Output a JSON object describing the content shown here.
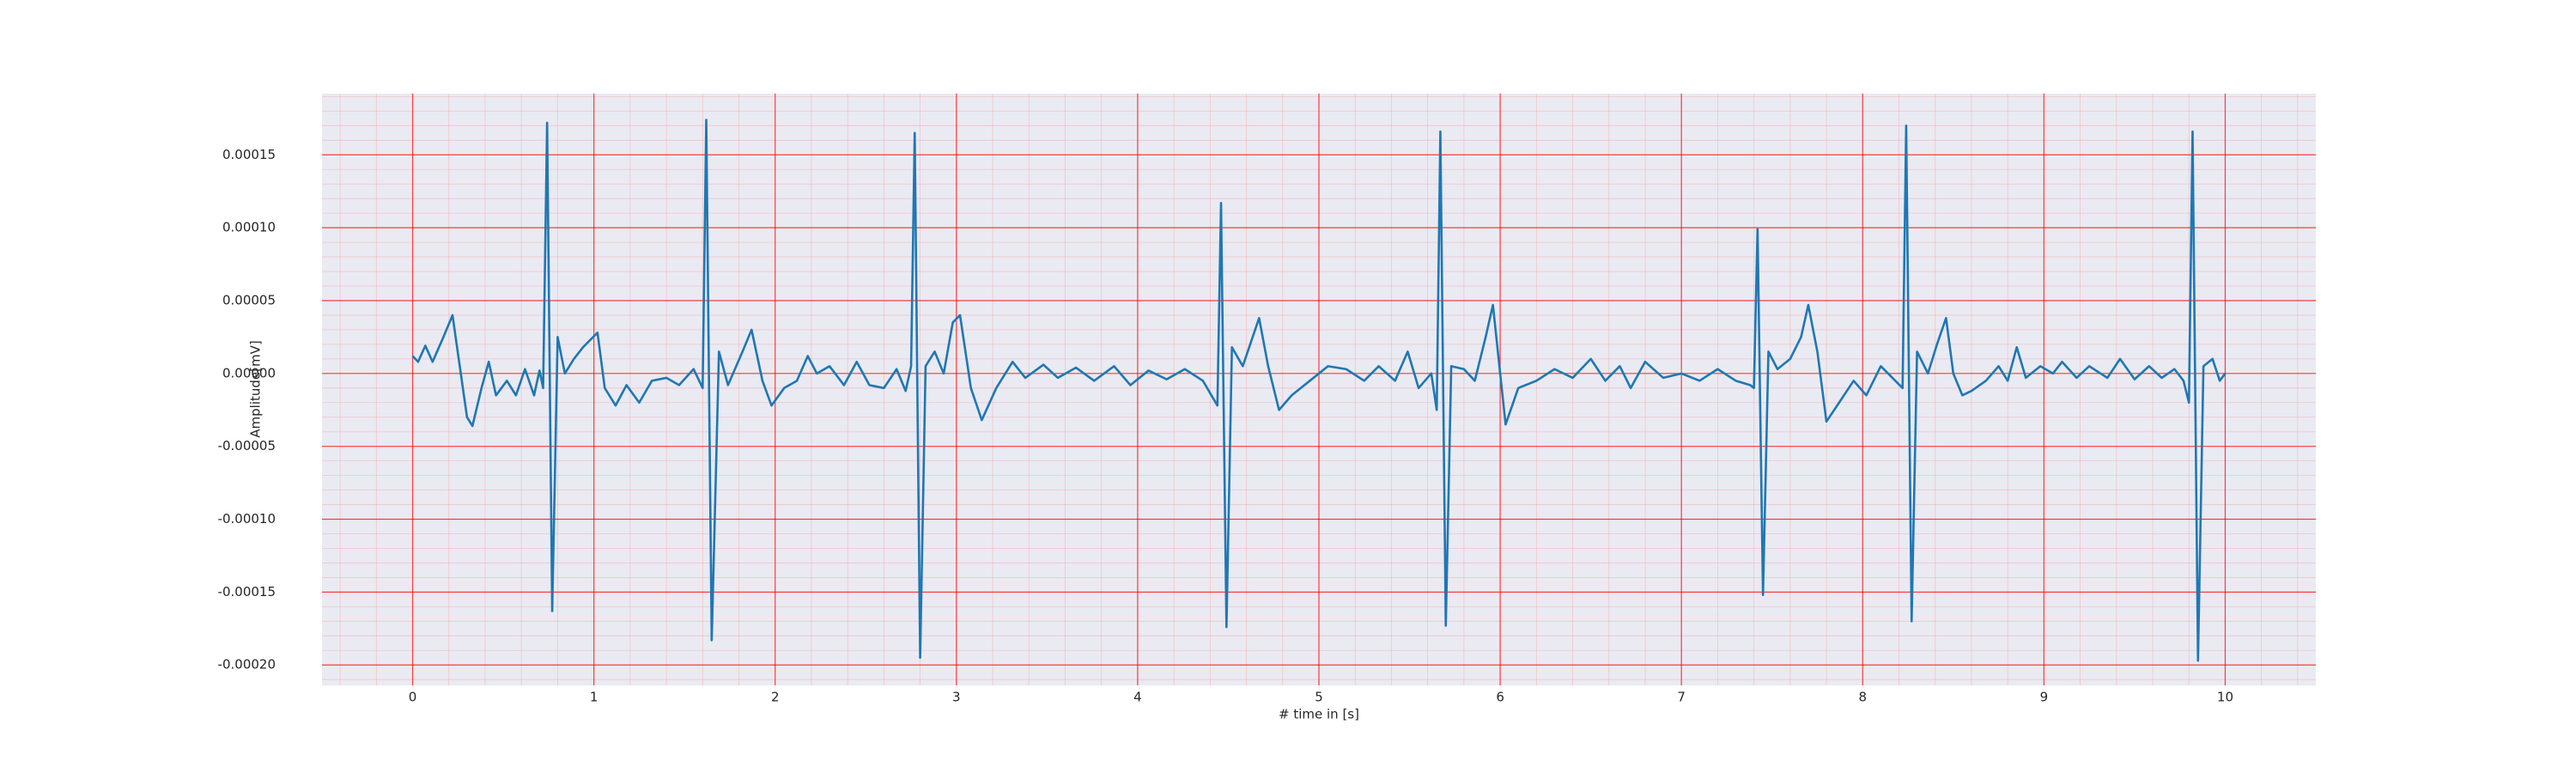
{
  "chart_data": {
    "type": "line",
    "xlabel": "# time in [s]",
    "ylabel": "Amplitude[mV]",
    "color": "#1f77b4",
    "grid": true,
    "minor_divisions": 5,
    "xlim": [
      -0.5,
      10.5
    ],
    "xticks": [
      0,
      1,
      2,
      3,
      4,
      5,
      6,
      7,
      8,
      9,
      10
    ],
    "ylim": [
      -0.000214,
      0.000192
    ],
    "yticks": [
      {
        "value": -0.0002,
        "label": "-0.00020"
      },
      {
        "value": -0.00015,
        "label": "-0.00015"
      },
      {
        "value": -0.0001,
        "label": "-0.00010"
      },
      {
        "value": -5e-05,
        "label": "-0.00005"
      },
      {
        "value": 0,
        "label": "0.00000"
      },
      {
        "value": 5e-05,
        "label": "0.00005"
      },
      {
        "value": 0.0001,
        "label": "0.00010"
      },
      {
        "value": 0.00015,
        "label": "0.00015"
      }
    ],
    "x": [
      0.0,
      0.03,
      0.07,
      0.11,
      0.17,
      0.22,
      0.26,
      0.3,
      0.33,
      0.38,
      0.42,
      0.46,
      0.52,
      0.57,
      0.62,
      0.67,
      0.7,
      0.72,
      0.742,
      0.77,
      0.8,
      0.84,
      0.89,
      0.94,
      1.02,
      1.06,
      1.12,
      1.18,
      1.25,
      1.32,
      1.4,
      1.47,
      1.55,
      1.6,
      1.62,
      1.65,
      1.69,
      1.74,
      1.82,
      1.87,
      1.93,
      1.98,
      2.05,
      2.12,
      2.18,
      2.23,
      2.3,
      2.38,
      2.45,
      2.52,
      2.6,
      2.67,
      2.72,
      2.75,
      2.77,
      2.8,
      2.83,
      2.88,
      2.93,
      2.98,
      3.02,
      3.08,
      3.14,
      3.22,
      3.31,
      3.38,
      3.48,
      3.56,
      3.66,
      3.76,
      3.87,
      3.96,
      4.06,
      4.16,
      4.26,
      4.36,
      4.44,
      4.46,
      4.49,
      4.52,
      4.58,
      4.67,
      4.72,
      4.78,
      4.85,
      4.95,
      5.05,
      5.15,
      5.25,
      5.33,
      5.42,
      5.49,
      5.55,
      5.62,
      5.65,
      5.67,
      5.7,
      5.73,
      5.8,
      5.86,
      5.92,
      5.96,
      6.0,
      6.03,
      6.1,
      6.2,
      6.3,
      6.4,
      6.5,
      6.58,
      6.66,
      6.72,
      6.8,
      6.9,
      7.0,
      7.1,
      7.2,
      7.3,
      7.38,
      7.4,
      7.42,
      7.45,
      7.48,
      7.53,
      7.6,
      7.66,
      7.7,
      7.75,
      7.8,
      7.87,
      7.95,
      8.02,
      8.1,
      8.18,
      8.22,
      8.24,
      8.27,
      8.3,
      8.36,
      8.41,
      8.46,
      8.5,
      8.55,
      8.6,
      8.68,
      8.75,
      8.8,
      8.85,
      8.9,
      8.98,
      9.05,
      9.1,
      9.18,
      9.25,
      9.35,
      9.42,
      9.5,
      9.58,
      9.65,
      9.72,
      9.77,
      9.8,
      9.82,
      9.85,
      9.88,
      9.93,
      9.97,
      10.0
    ],
    "values": [
      1.2e-05,
      8e-06,
      1.9e-05,
      8e-06,
      2.5e-05,
      4e-05,
      5e-06,
      -3e-05,
      -3.6e-05,
      -1e-05,
      8e-06,
      -1.5e-05,
      -5e-06,
      -1.5e-05,
      3e-06,
      -1.5e-05,
      2e-06,
      -1e-05,
      0.000172,
      -0.000163,
      2.5e-05,
      0.0,
      1e-05,
      1.8e-05,
      2.8e-05,
      -1e-05,
      -2.2e-05,
      -8e-06,
      -2e-05,
      -5e-06,
      -3e-06,
      -8e-06,
      3e-06,
      -1e-05,
      0.000174,
      -0.000183,
      1.5e-05,
      -8e-06,
      1.5e-05,
      3e-05,
      -5e-06,
      -2.2e-05,
      -1e-05,
      -5e-06,
      1.2e-05,
      0.0,
      5e-06,
      -8e-06,
      8e-06,
      -8e-06,
      -1e-05,
      3e-06,
      -1.2e-05,
      5e-06,
      0.000165,
      -0.000195,
      5e-06,
      1.5e-05,
      0.0,
      3.5e-05,
      4e-05,
      -1e-05,
      -3.2e-05,
      -1e-05,
      8e-06,
      -3e-06,
      6e-06,
      -3e-06,
      4e-06,
      -5e-06,
      5e-06,
      -8e-06,
      2e-06,
      -4e-06,
      3e-06,
      -5e-06,
      -2.2e-05,
      0.000117,
      -0.000174,
      1.8e-05,
      5e-06,
      3.8e-05,
      5e-06,
      -2.5e-05,
      -1.5e-05,
      -5e-06,
      5e-06,
      3e-06,
      -5e-06,
      5e-06,
      -5e-06,
      1.5e-05,
      -1e-05,
      0.0,
      -2.5e-05,
      0.000166,
      -0.000173,
      5e-06,
      3e-06,
      -5e-06,
      2.5e-05,
      4.7e-05,
      0.0,
      -3.5e-05,
      -1e-05,
      -5e-06,
      3e-06,
      -3e-06,
      1e-05,
      -5e-06,
      5e-06,
      -1e-05,
      8e-06,
      -3e-06,
      0.0,
      -5e-06,
      3e-06,
      -5e-06,
      -8e-06,
      -1e-05,
      9.9e-05,
      -0.000152,
      1.5e-05,
      3e-06,
      1e-05,
      2.5e-05,
      4.7e-05,
      1.5e-05,
      -3.3e-05,
      -2e-05,
      -5e-06,
      -1.5e-05,
      5e-06,
      -5e-06,
      -1e-05,
      0.00017,
      -0.00017,
      1.5e-05,
      0.0,
      2e-05,
      3.8e-05,
      0.0,
      -1.5e-05,
      -1.2e-05,
      -5e-06,
      5e-06,
      -5e-06,
      1.8e-05,
      -3e-06,
      5e-06,
      0.0,
      8e-06,
      -3e-06,
      5e-06,
      -3e-06,
      1e-05,
      -4e-06,
      5e-06,
      -3e-06,
      3e-06,
      -5e-06,
      -2e-05,
      0.000166,
      -0.000197,
      5e-06,
      1e-05,
      -5e-06,
      0.0
    ]
  }
}
